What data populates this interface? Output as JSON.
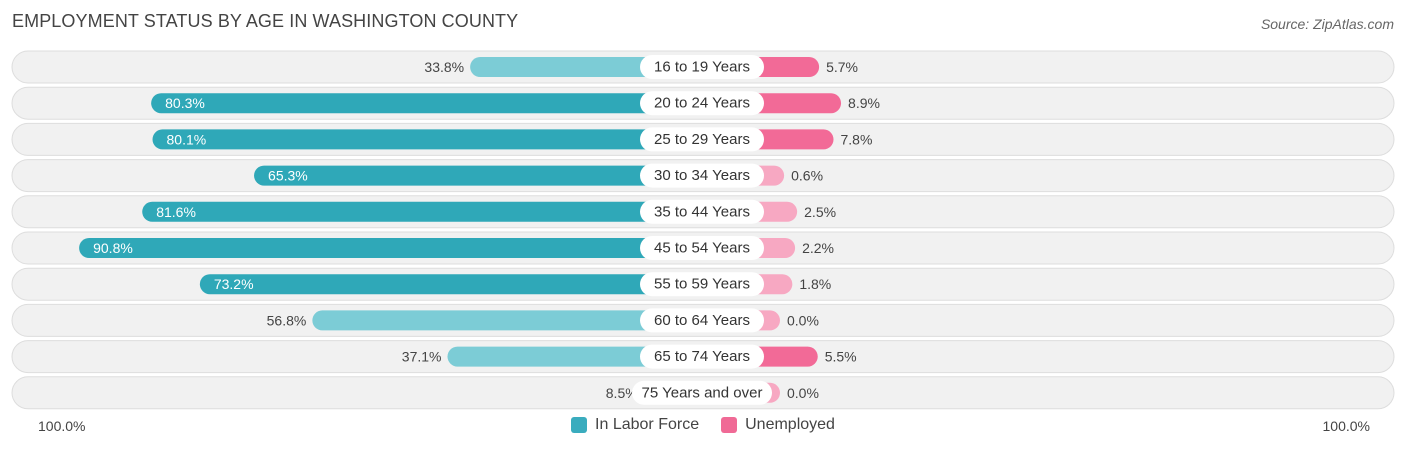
{
  "title": "EMPLOYMENT STATUS BY AGE IN WASHINGTON COUNTY",
  "source": "Source: ZipAtlas.com",
  "axis": {
    "left_label": "100.0%",
    "right_label": "100.0%"
  },
  "legend": [
    {
      "label": "In Labor Force",
      "color": "#3aacbe"
    },
    {
      "label": "Unemployed",
      "color": "#f06a96"
    }
  ],
  "colors": {
    "labor_strong": "#2fa8b8",
    "labor_light": "#7cccd6",
    "unemp_strong": "#f26a97",
    "unemp_light": "#f7a8c2",
    "row_bg": "#f1f1f1",
    "row_border": "#dddddd"
  },
  "chart_data": {
    "type": "bar",
    "orientation": "horizontal-diverging",
    "title": "EMPLOYMENT STATUS BY AGE IN WASHINGTON COUNTY",
    "categories": [
      "16 to 19 Years",
      "20 to 24 Years",
      "25 to 29 Years",
      "30 to 34 Years",
      "35 to 44 Years",
      "45 to 54 Years",
      "55 to 59 Years",
      "60 to 64 Years",
      "65 to 74 Years",
      "75 Years and over"
    ],
    "series": [
      {
        "name": "In Labor Force",
        "values": [
          33.8,
          80.3,
          80.1,
          65.3,
          81.6,
          90.8,
          73.2,
          56.8,
          37.1,
          8.5
        ],
        "labels": [
          "33.8%",
          "80.3%",
          "80.1%",
          "65.3%",
          "81.6%",
          "90.8%",
          "73.2%",
          "56.8%",
          "37.1%",
          "8.5%"
        ]
      },
      {
        "name": "Unemployed",
        "values": [
          5.7,
          8.9,
          7.8,
          0.6,
          2.5,
          2.2,
          1.8,
          0.0,
          5.5,
          0.0
        ],
        "labels": [
          "5.7%",
          "8.9%",
          "7.8%",
          "0.6%",
          "2.5%",
          "2.2%",
          "1.8%",
          "0.0%",
          "5.5%",
          "0.0%"
        ]
      }
    ],
    "xlim": [
      -100,
      100
    ],
    "legend_position": "bottom-center"
  }
}
